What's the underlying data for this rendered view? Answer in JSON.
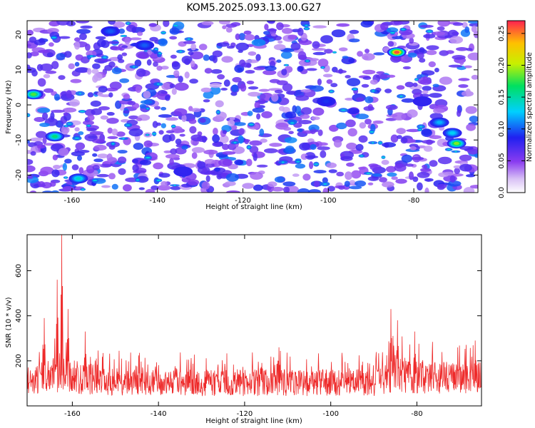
{
  "title": "KOM5.2025.093.13.00.G27",
  "chart_data": [
    {
      "type": "heatmap",
      "xlabel": "Height of straight line (km)",
      "ylabel": "Frequency (Hz)",
      "xlim": [
        -170.5,
        -65
      ],
      "ylim": [
        -25,
        24
      ],
      "xticks": [
        -160,
        -140,
        -120,
        -100,
        -80
      ],
      "yticks": [
        -20,
        -10,
        0,
        10,
        20
      ],
      "colorbar": {
        "label": "Normalized spectral amplitude",
        "range": [
          0,
          0.27
        ],
        "ticks": [
          0.0,
          0.05,
          0.1,
          0.15,
          0.2,
          0.25
        ],
        "tick_labels": [
          "0.0",
          "0.05",
          "0.10",
          "0.15",
          "0.20",
          "0.25"
        ]
      },
      "hotspots": [
        {
          "x": -169,
          "y": 3,
          "value": 0.18
        },
        {
          "x": -164,
          "y": -9,
          "value": 0.16
        },
        {
          "x": -158.5,
          "y": -21,
          "value": 0.14
        },
        {
          "x": -151,
          "y": 21,
          "value": 0.1
        },
        {
          "x": -143,
          "y": 17,
          "value": 0.1
        },
        {
          "x": -134,
          "y": -19,
          "value": 0.08
        },
        {
          "x": -100.5,
          "y": 1,
          "value": 0.09
        },
        {
          "x": -84,
          "y": 15,
          "value": 0.26
        },
        {
          "x": -74,
          "y": -5,
          "value": 0.12
        },
        {
          "x": -71,
          "y": -8,
          "value": 0.13
        },
        {
          "x": -70,
          "y": -11,
          "value": 0.19
        },
        {
          "x": -78,
          "y": 1,
          "value": 0.08
        }
      ]
    },
    {
      "type": "line",
      "xlabel": "Height of straight line (km)",
      "ylabel": "SNR (10 * v/v)",
      "xlim": [
        -170.5,
        -65
      ],
      "ylim": [
        0,
        760
      ],
      "xticks": [
        -160,
        -140,
        -120,
        -100,
        -80
      ],
      "yticks": [
        200,
        400,
        600
      ],
      "color": "#ee2a2a",
      "series": [
        {
          "x": [
            -170,
            -168,
            -166,
            -164,
            -163,
            -162.5,
            -162,
            -161,
            -160,
            -158,
            -156,
            -154,
            -152,
            -150,
            -145,
            -140,
            -135,
            -130,
            -125,
            -120,
            -115,
            -112,
            -110,
            -105,
            -100,
            -95,
            -90,
            -88,
            -86,
            -85,
            -84,
            -83,
            -82,
            -80,
            -78,
            -76,
            -74,
            -72,
            -70,
            -68,
            -66,
            -65
          ],
          "baseline": [
            140,
            150,
            155,
            165,
            175,
            180,
            175,
            165,
            160,
            150,
            145,
            140,
            135,
            130,
            125,
            125,
            125,
            125,
            125,
            125,
            125,
            130,
            125,
            125,
            125,
            125,
            125,
            140,
            165,
            175,
            175,
            170,
            160,
            160,
            155,
            150,
            150,
            150,
            150,
            150,
            150,
            150
          ],
          "peaks": [
            {
              "x": -166.5,
              "y": 390
            },
            {
              "x": -163.5,
              "y": 560
            },
            {
              "x": -162.5,
              "y": 760
            },
            {
              "x": -161,
              "y": 430
            },
            {
              "x": -157,
              "y": 330
            },
            {
              "x": -112,
              "y": 260
            },
            {
              "x": -86,
              "y": 430
            },
            {
              "x": -84.5,
              "y": 380
            },
            {
              "x": -80.5,
              "y": 330
            },
            {
              "x": -66.5,
              "y": 290
            }
          ]
        }
      ]
    }
  ]
}
